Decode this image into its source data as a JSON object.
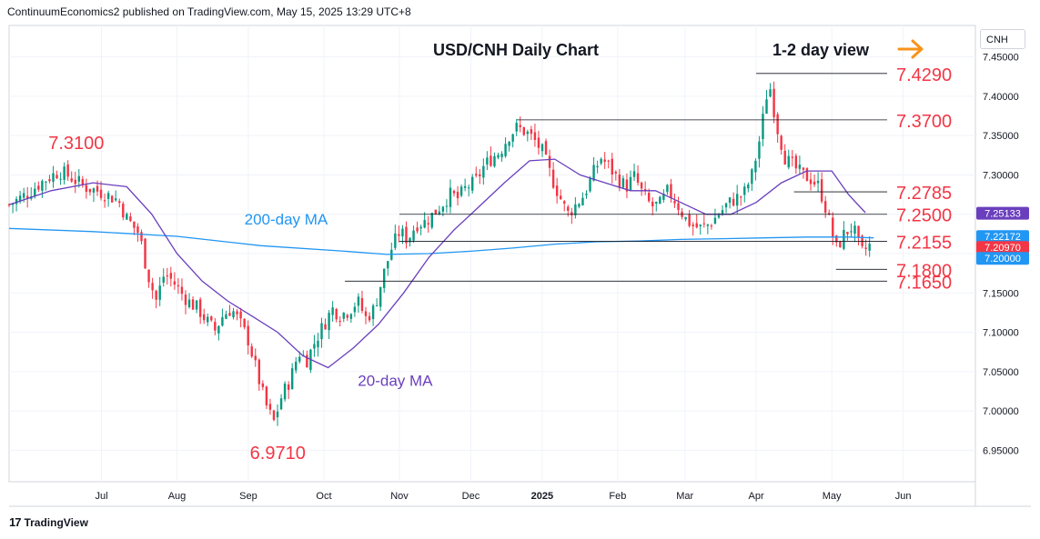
{
  "header": {
    "publisher": "ContinuumEconomics2 published on TradingView.com, May 15, 2025 13:29 UTC+8"
  },
  "footer": {
    "brand": "TradingView",
    "logo_glyph": "17"
  },
  "symbol_box": "CNH",
  "chart_data": {
    "type": "candlestick",
    "title": "USD/CNH Daily Chart",
    "annotation_view": "1-2 day view",
    "ylim": [
      6.91,
      7.49
    ],
    "y_ticks": [
      "7.45000",
      "7.40000",
      "7.35000",
      "7.30000",
      "7.25000",
      "7.20000",
      "7.15000",
      "7.10000",
      "7.05000",
      "7.00000",
      "6.95000"
    ],
    "y_tick_values": [
      7.45,
      7.4,
      7.35,
      7.3,
      7.25,
      7.2,
      7.15,
      7.1,
      7.05,
      7.0,
      6.95
    ],
    "x_ticks": [
      {
        "label": "Jul",
        "t": 0.11
      },
      {
        "label": "Aug",
        "t": 0.2
      },
      {
        "label": "Sep",
        "t": 0.285
      },
      {
        "label": "Oct",
        "t": 0.375
      },
      {
        "label": "Nov",
        "t": 0.465
      },
      {
        "label": "Dec",
        "t": 0.55
      },
      {
        "label": "2025",
        "t": 0.635
      },
      {
        "label": "Feb",
        "t": 0.725
      },
      {
        "label": "Mar",
        "t": 0.805
      },
      {
        "label": "Apr",
        "t": 0.89
      },
      {
        "label": "May",
        "t": 0.98
      },
      {
        "label": "Jun",
        "t": 1.065
      }
    ],
    "close_path": [
      [
        0.0,
        7.262
      ],
      [
        0.02,
        7.275
      ],
      [
        0.04,
        7.292
      ],
      [
        0.06,
        7.305
      ],
      [
        0.075,
        7.296
      ],
      [
        0.09,
        7.285
      ],
      [
        0.11,
        7.278
      ],
      [
        0.13,
        7.268
      ],
      [
        0.14,
        7.245
      ],
      [
        0.155,
        7.225
      ],
      [
        0.165,
        7.175
      ],
      [
        0.175,
        7.14
      ],
      [
        0.185,
        7.175
      ],
      [
        0.195,
        7.165
      ],
      [
        0.205,
        7.15
      ],
      [
        0.215,
        7.138
      ],
      [
        0.225,
        7.13
      ],
      [
        0.235,
        7.115
      ],
      [
        0.245,
        7.102
      ],
      [
        0.255,
        7.122
      ],
      [
        0.265,
        7.13
      ],
      [
        0.275,
        7.112
      ],
      [
        0.285,
        7.09
      ],
      [
        0.295,
        7.05
      ],
      [
        0.305,
        7.01
      ],
      [
        0.315,
        6.985
      ],
      [
        0.325,
        7.02
      ],
      [
        0.335,
        7.04
      ],
      [
        0.345,
        7.075
      ],
      [
        0.355,
        7.065
      ],
      [
        0.365,
        7.09
      ],
      [
        0.375,
        7.11
      ],
      [
        0.385,
        7.13
      ],
      [
        0.395,
        7.122
      ],
      [
        0.405,
        7.128
      ],
      [
        0.415,
        7.14
      ],
      [
        0.425,
        7.118
      ],
      [
        0.435,
        7.13
      ],
      [
        0.445,
        7.17
      ],
      [
        0.455,
        7.205
      ],
      [
        0.465,
        7.228
      ],
      [
        0.475,
        7.218
      ],
      [
        0.485,
        7.238
      ],
      [
        0.495,
        7.24
      ],
      [
        0.505,
        7.25
      ],
      [
        0.515,
        7.262
      ],
      [
        0.525,
        7.275
      ],
      [
        0.535,
        7.27
      ],
      [
        0.545,
        7.285
      ],
      [
        0.555,
        7.29
      ],
      [
        0.565,
        7.31
      ],
      [
        0.575,
        7.322
      ],
      [
        0.585,
        7.33
      ],
      [
        0.595,
        7.35
      ],
      [
        0.605,
        7.36
      ],
      [
        0.615,
        7.355
      ],
      [
        0.625,
        7.345
      ],
      [
        0.635,
        7.33
      ],
      [
        0.645,
        7.3
      ],
      [
        0.655,
        7.275
      ],
      [
        0.665,
        7.25
      ],
      [
        0.675,
        7.262
      ],
      [
        0.685,
        7.275
      ],
      [
        0.695,
        7.3
      ],
      [
        0.705,
        7.322
      ],
      [
        0.715,
        7.31
      ],
      [
        0.725,
        7.295
      ],
      [
        0.735,
        7.285
      ],
      [
        0.745,
        7.298
      ],
      [
        0.755,
        7.275
      ],
      [
        0.765,
        7.26
      ],
      [
        0.775,
        7.262
      ],
      [
        0.785,
        7.28
      ],
      [
        0.795,
        7.265
      ],
      [
        0.805,
        7.245
      ],
      [
        0.815,
        7.235
      ],
      [
        0.825,
        7.232
      ],
      [
        0.835,
        7.238
      ],
      [
        0.845,
        7.25
      ],
      [
        0.855,
        7.262
      ],
      [
        0.865,
        7.27
      ],
      [
        0.875,
        7.275
      ],
      [
        0.885,
        7.3
      ],
      [
        0.895,
        7.35
      ],
      [
        0.905,
        7.42
      ],
      [
        0.915,
        7.36
      ],
      [
        0.925,
        7.32
      ],
      [
        0.935,
        7.31
      ],
      [
        0.945,
        7.3
      ],
      [
        0.955,
        7.295
      ],
      [
        0.965,
        7.285
      ],
      [
        0.975,
        7.25
      ],
      [
        0.985,
        7.205
      ],
      [
        0.995,
        7.225
      ],
      [
        1.005,
        7.235
      ],
      [
        1.015,
        7.2
      ],
      [
        1.025,
        7.21
      ]
    ],
    "series": [
      {
        "name": "200-day MA",
        "color": "#2196f3",
        "points": [
          [
            0.0,
            7.232
          ],
          [
            0.1,
            7.228
          ],
          [
            0.2,
            7.222
          ],
          [
            0.3,
            7.21
          ],
          [
            0.4,
            7.203
          ],
          [
            0.45,
            7.199
          ],
          [
            0.5,
            7.2
          ],
          [
            0.55,
            7.203
          ],
          [
            0.6,
            7.207
          ],
          [
            0.65,
            7.212
          ],
          [
            0.7,
            7.215
          ],
          [
            0.75,
            7.216
          ],
          [
            0.8,
            7.218
          ],
          [
            0.85,
            7.219
          ],
          [
            0.9,
            7.22
          ],
          [
            0.95,
            7.221
          ],
          [
            1.0,
            7.221
          ],
          [
            1.03,
            7.22
          ]
        ]
      },
      {
        "name": "20-day MA",
        "color": "#6a3fbd",
        "points": [
          [
            0.0,
            7.262
          ],
          [
            0.05,
            7.28
          ],
          [
            0.1,
            7.29
          ],
          [
            0.14,
            7.285
          ],
          [
            0.17,
            7.25
          ],
          [
            0.2,
            7.2
          ],
          [
            0.23,
            7.165
          ],
          [
            0.26,
            7.14
          ],
          [
            0.29,
            7.12
          ],
          [
            0.32,
            7.1
          ],
          [
            0.35,
            7.07
          ],
          [
            0.38,
            7.055
          ],
          [
            0.41,
            7.08
          ],
          [
            0.44,
            7.11
          ],
          [
            0.47,
            7.15
          ],
          [
            0.5,
            7.195
          ],
          [
            0.53,
            7.23
          ],
          [
            0.56,
            7.26
          ],
          [
            0.59,
            7.29
          ],
          [
            0.62,
            7.318
          ],
          [
            0.65,
            7.32
          ],
          [
            0.68,
            7.3
          ],
          [
            0.71,
            7.29
          ],
          [
            0.74,
            7.28
          ],
          [
            0.77,
            7.28
          ],
          [
            0.8,
            7.265
          ],
          [
            0.83,
            7.25
          ],
          [
            0.86,
            7.25
          ],
          [
            0.89,
            7.265
          ],
          [
            0.92,
            7.29
          ],
          [
            0.95,
            7.305
          ],
          [
            0.98,
            7.305
          ],
          [
            1.0,
            7.275
          ],
          [
            1.02,
            7.252
          ]
        ]
      }
    ],
    "levels": [
      {
        "label": "7.4290",
        "value": 7.429,
        "x_start": 0.89
      },
      {
        "label": "7.3700",
        "value": 7.37,
        "x_start": 0.605
      },
      {
        "label": "7.2785",
        "value": 7.2785,
        "x_start": 0.935
      },
      {
        "label": "7.2500",
        "value": 7.25,
        "x_start": 0.465
      },
      {
        "label": "7.2155",
        "value": 7.2155,
        "x_start": 0.465
      },
      {
        "label": "7.1800",
        "value": 7.18,
        "x_start": 0.985
      },
      {
        "label": "7.1650",
        "value": 7.165,
        "x_start": 0.4
      }
    ],
    "swing_labels": [
      {
        "label": "7.3100",
        "x": 0.08,
        "value": 7.31
      },
      {
        "label": "6.9710",
        "x": 0.32,
        "value": 6.971
      }
    ],
    "ma_labels": [
      {
        "label": "200-day MA",
        "x": 0.33,
        "value": 7.23
      },
      {
        "label": "20-day MA",
        "x": 0.46,
        "value": 7.047
      }
    ],
    "price_badges": [
      {
        "label": "7.25133",
        "value": 7.25133,
        "color": "#6a3fbd"
      },
      {
        "label": "7.22172",
        "value": 7.22172,
        "color": "#2196f3"
      },
      {
        "label": "7.20970",
        "value": 7.2097,
        "color": "#f23645"
      },
      {
        "label": "7.20000",
        "value": 7.2,
        "color": "#2196f3"
      }
    ],
    "colors": {
      "up": "#089981",
      "down": "#f23645",
      "level_label": "#f23645",
      "arrow": "#f7931a"
    },
    "grid": true
  }
}
